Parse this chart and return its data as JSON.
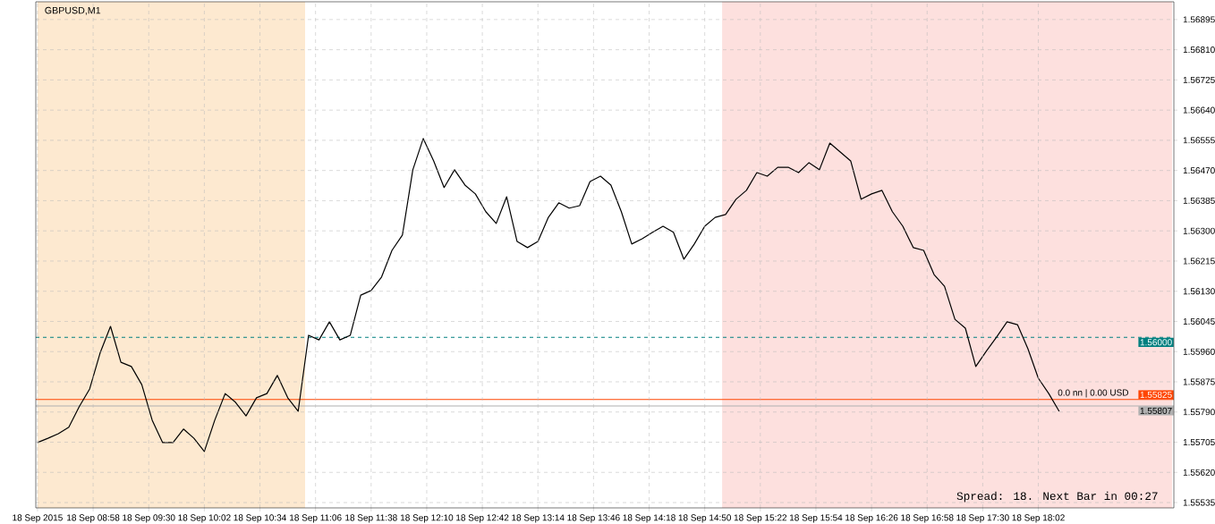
{
  "chart_data": {
    "type": "line",
    "title": "GBPUSD,M1",
    "x": [
      "2015-09-18T08:26",
      "2015-09-18T08:32",
      "2015-09-18T08:38",
      "2015-09-18T08:44",
      "2015-09-18T08:50",
      "2015-09-18T08:56",
      "2015-09-18T09:02",
      "2015-09-18T09:08",
      "2015-09-18T09:14",
      "2015-09-18T09:20",
      "2015-09-18T09:26",
      "2015-09-18T09:32",
      "2015-09-18T09:38",
      "2015-09-18T09:44",
      "2015-09-18T09:50",
      "2015-09-18T09:56",
      "2015-09-18T10:02",
      "2015-09-18T10:08",
      "2015-09-18T10:14",
      "2015-09-18T10:20",
      "2015-09-18T10:26",
      "2015-09-18T10:32",
      "2015-09-18T10:38",
      "2015-09-18T10:44",
      "2015-09-18T10:50",
      "2015-09-18T10:56",
      "2015-09-18T11:02",
      "2015-09-18T11:08",
      "2015-09-18T11:14",
      "2015-09-18T11:20",
      "2015-09-18T11:26",
      "2015-09-18T11:32",
      "2015-09-18T11:38",
      "2015-09-18T11:44",
      "2015-09-18T11:50",
      "2015-09-18T11:56",
      "2015-09-18T12:02",
      "2015-09-18T12:08",
      "2015-09-18T12:14",
      "2015-09-18T12:20",
      "2015-09-18T12:26",
      "2015-09-18T12:32",
      "2015-09-18T12:38",
      "2015-09-18T12:44",
      "2015-09-18T12:50",
      "2015-09-18T12:56",
      "2015-09-18T13:02",
      "2015-09-18T13:08",
      "2015-09-18T13:14",
      "2015-09-18T13:20",
      "2015-09-18T13:26",
      "2015-09-18T13:32",
      "2015-09-18T13:38",
      "2015-09-18T13:44",
      "2015-09-18T13:50",
      "2015-09-18T13:56",
      "2015-09-18T14:02",
      "2015-09-18T14:08",
      "2015-09-18T14:14",
      "2015-09-18T14:20",
      "2015-09-18T14:26",
      "2015-09-18T14:32",
      "2015-09-18T14:38",
      "2015-09-18T14:44",
      "2015-09-18T14:50",
      "2015-09-18T14:56",
      "2015-09-18T15:02",
      "2015-09-18T15:08",
      "2015-09-18T15:14",
      "2015-09-18T15:20",
      "2015-09-18T15:26",
      "2015-09-18T15:32",
      "2015-09-18T15:38",
      "2015-09-18T15:44",
      "2015-09-18T15:50",
      "2015-09-18T15:56",
      "2015-09-18T16:02",
      "2015-09-18T16:08",
      "2015-09-18T16:14",
      "2015-09-18T16:20",
      "2015-09-18T16:26",
      "2015-09-18T16:32",
      "2015-09-18T16:38",
      "2015-09-18T16:44",
      "2015-09-18T16:50",
      "2015-09-18T16:56",
      "2015-09-18T17:02",
      "2015-09-18T17:08",
      "2015-09-18T17:14",
      "2015-09-18T17:20",
      "2015-09-18T17:26",
      "2015-09-18T17:32",
      "2015-09-18T17:38",
      "2015-09-18T17:44",
      "2015-09-18T17:50",
      "2015-09-18T17:56",
      "2015-09-18T18:02",
      "2015-09-18T18:08",
      "2015-09-18T18:14"
    ],
    "series": [
      {
        "color": "#000000",
        "values": [
          1.55704,
          1.55716,
          1.55729,
          1.55747,
          1.55805,
          1.55855,
          1.55956,
          1.56031,
          1.5593,
          1.55918,
          1.55867,
          1.55767,
          1.55704,
          1.55704,
          1.55742,
          1.55716,
          1.55679,
          1.55767,
          1.55842,
          1.55817,
          1.55779,
          1.5583,
          1.55842,
          1.55893,
          1.5583,
          1.55792,
          1.56006,
          1.55993,
          1.56044,
          1.55993,
          1.56006,
          1.56119,
          1.56132,
          1.5617,
          1.56245,
          1.56288,
          1.56472,
          1.5656,
          1.56497,
          1.56422,
          1.56472,
          1.56429,
          1.56404,
          1.56354,
          1.56321,
          1.56396,
          1.5627,
          1.56253,
          1.5627,
          1.56338,
          1.56379,
          1.56364,
          1.56371,
          1.56439,
          1.56454,
          1.56429,
          1.56354,
          1.56263,
          1.56278,
          1.56296,
          1.56313,
          1.56296,
          1.5622,
          1.56263,
          1.56313,
          1.56338,
          1.56346,
          1.56389,
          1.56414,
          1.56464,
          1.56454,
          1.56479,
          1.56479,
          1.56464,
          1.56492,
          1.56472,
          1.56547,
          1.56522,
          1.56497,
          1.56389,
          1.56404,
          1.56414,
          1.56354,
          1.56313,
          1.56253,
          1.56245,
          1.56177,
          1.56144,
          1.56051,
          1.56026,
          1.55918,
          1.55961,
          1.56001,
          1.56044,
          1.56036,
          1.55968,
          1.55885,
          1.55842,
          1.55792
        ]
      }
    ],
    "xlim": [
      "2015-09-18T08:25",
      "2015-09-18T19:20"
    ],
    "xticks": [
      {
        "value": "2015-09-18T08:26",
        "label": "18 Sep 2015"
      },
      {
        "value": "2015-09-18T08:58",
        "label": "18 Sep 08:58"
      },
      {
        "value": "2015-09-18T09:30",
        "label": "18 Sep 09:30"
      },
      {
        "value": "2015-09-18T10:02",
        "label": "18 Sep 10:02"
      },
      {
        "value": "2015-09-18T10:34",
        "label": "18 Sep 10:34"
      },
      {
        "value": "2015-09-18T11:06",
        "label": "18 Sep 11:06"
      },
      {
        "value": "2015-09-18T11:38",
        "label": "18 Sep 11:38"
      },
      {
        "value": "2015-09-18T12:10",
        "label": "18 Sep 12:10"
      },
      {
        "value": "2015-09-18T12:42",
        "label": "18 Sep 12:42"
      },
      {
        "value": "2015-09-18T13:14",
        "label": "18 Sep 13:14"
      },
      {
        "value": "2015-09-18T13:46",
        "label": "18 Sep 13:46"
      },
      {
        "value": "2015-09-18T14:18",
        "label": "18 Sep 14:18"
      },
      {
        "value": "2015-09-18T14:50",
        "label": "18 Sep 14:50"
      },
      {
        "value": "2015-09-18T15:22",
        "label": "18 Sep 15:22"
      },
      {
        "value": "2015-09-18T15:54",
        "label": "18 Sep 15:54"
      },
      {
        "value": "2015-09-18T16:26",
        "label": "18 Sep 16:26"
      },
      {
        "value": "2015-09-18T16:58",
        "label": "18 Sep 16:58"
      },
      {
        "value": "2015-09-18T17:30",
        "label": "18 Sep 17:30"
      },
      {
        "value": "2015-09-18T18:02",
        "label": "18 Sep 18:02"
      }
    ],
    "ylim": [
      1.5552,
      1.56945
    ],
    "yticks": [
      1.55535,
      {
        "value": 1.5562,
        "label": "1.55620"
      },
      1.55705,
      {
        "value": 1.5579,
        "label": "1.55790"
      },
      1.55875,
      {
        "value": 1.5596,
        "label": "1.55960"
      },
      1.56045,
      {
        "value": 1.5613,
        "label": "1.56130"
      },
      1.56215,
      {
        "value": 1.563,
        "label": "1.56300"
      },
      1.56385,
      {
        "value": 1.5647,
        "label": "1.56470"
      },
      1.56555,
      {
        "value": 1.5664,
        "label": "1.56640"
      },
      1.56725,
      {
        "value": 1.5681,
        "label": "1.56810"
      },
      1.56895
    ],
    "grid": true,
    "marker": "none",
    "line_style": "solid",
    "ref_lines": [
      {
        "axis": "y",
        "value": 1.56,
        "label": "1.56000",
        "color": "#008080",
        "line_style": "dashed"
      },
      {
        "axis": "y",
        "value": 1.55825,
        "label": "1.55825",
        "color": "#ff4500",
        "line_style": "solid"
      },
      {
        "axis": "y",
        "value": 1.55807,
        "label": "1.55807",
        "color": "#b0b0b0",
        "line_style": "solid"
      }
    ],
    "bands": [
      {
        "axis": "x",
        "from": "2015-09-18T08:26",
        "to": "2015-09-18T11:00",
        "color": "#fde9d0"
      },
      {
        "axis": "x",
        "from": "2015-09-18T15:00",
        "to": "2015-09-18T19:19",
        "color": "#fde0de"
      }
    ],
    "annotations": [
      {
        "text": "0.0 nn | 0.00 USD",
        "x": "2015-09-18T18:12",
        "y": 1.55825
      },
      "Spread: 18. Next Bar in 00:27"
    ]
  }
}
